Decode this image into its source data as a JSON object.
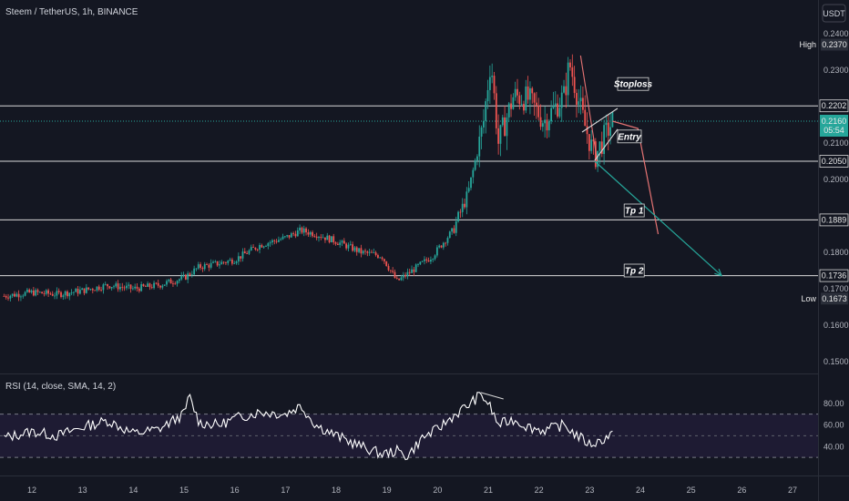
{
  "header": {
    "symbol_title": "Steem / TetherUS, 1h, BINANCE",
    "currency_button": "USDT"
  },
  "rsi_panel": {
    "title": "RSI (14, close, SMA, 14, 2)",
    "ticks": [
      "80.00",
      "60.00",
      "40.00"
    ]
  },
  "annotations": {
    "stoploss": "Stoploss",
    "entry": "Entry",
    "tp1": "Tp 1",
    "tp2": "Tp 2"
  },
  "price_axis": {
    "ticks": [
      "0.2400",
      "0.2300",
      "0.2100",
      "0.2000",
      "0.1800",
      "0.1700",
      "0.1600",
      "0.1500"
    ],
    "high_label": "High",
    "high_value": "0.2370",
    "low_label": "Low",
    "low_value": "0.1673",
    "current_price": "0.2160",
    "countdown": "05:54",
    "levels": [
      "0.2202",
      "0.2050",
      "0.1889",
      "0.1736"
    ]
  },
  "time_axis": {
    "ticks": [
      "12",
      "13",
      "14",
      "15",
      "16",
      "17",
      "18",
      "19",
      "20",
      "21",
      "22",
      "23",
      "24",
      "25",
      "26",
      "27"
    ]
  },
  "colors": {
    "background": "#141722",
    "up": "#26a69a",
    "down": "#ef5350",
    "level_line": "#d9d9d9",
    "current_price": "#26a69a",
    "rsi_line": "#ffffff",
    "rsi_band": "#1e1b33",
    "projection_down": "#e57373",
    "projection_target": "#26a69a"
  },
  "chart_data": {
    "type": "candlestick",
    "title": "Steem / TetherUS, 1h, BINANCE",
    "x_unit": "day",
    "x_ticks": [
      12,
      13,
      14,
      15,
      16,
      17,
      18,
      19,
      20,
      21,
      22,
      23,
      24,
      25,
      26,
      27
    ],
    "ylim": [
      0.145,
      0.245
    ],
    "horizontal_levels": [
      0.2202,
      0.205,
      0.1889,
      0.1736
    ],
    "current_price": 0.216,
    "high": 0.237,
    "low": 0.1673,
    "price_path": [
      [
        11.45,
        0.168
      ],
      [
        12.0,
        0.169
      ],
      [
        12.5,
        0.1685
      ],
      [
        13.0,
        0.1695
      ],
      [
        13.5,
        0.171
      ],
      [
        14.0,
        0.17
      ],
      [
        14.5,
        0.171
      ],
      [
        15.0,
        0.173
      ],
      [
        15.3,
        0.176
      ],
      [
        15.7,
        0.177
      ],
      [
        16.0,
        0.178
      ],
      [
        16.5,
        0.182
      ],
      [
        17.0,
        0.184
      ],
      [
        17.3,
        0.186
      ],
      [
        17.6,
        0.185
      ],
      [
        18.0,
        0.183
      ],
      [
        18.5,
        0.18
      ],
      [
        18.9,
        0.179
      ],
      [
        19.2,
        0.172
      ],
      [
        19.5,
        0.175
      ],
      [
        19.9,
        0.179
      ],
      [
        20.3,
        0.186
      ],
      [
        20.6,
        0.196
      ],
      [
        20.9,
        0.215
      ],
      [
        21.05,
        0.233
      ],
      [
        21.2,
        0.21
      ],
      [
        21.5,
        0.223
      ],
      [
        21.8,
        0.222
      ],
      [
        22.1,
        0.216
      ],
      [
        22.5,
        0.223
      ],
      [
        22.6,
        0.232
      ],
      [
        22.9,
        0.215
      ],
      [
        23.1,
        0.206
      ],
      [
        23.3,
        0.212
      ],
      [
        23.45,
        0.216
      ]
    ],
    "projection_short": [
      [
        23.45,
        0.216
      ],
      [
        23.95,
        0.214
      ],
      [
        24.35,
        0.185
      ]
    ],
    "projection_target": [
      [
        23.1,
        0.205
      ],
      [
        25.6,
        0.1736
      ]
    ],
    "rsi": {
      "ylim": [
        20,
        100
      ],
      "overbought": 70,
      "mid": 50,
      "oversold": 30,
      "path": [
        [
          11.45,
          48
        ],
        [
          12.0,
          54
        ],
        [
          12.5,
          50
        ],
        [
          13.0,
          58
        ],
        [
          13.5,
          64
        ],
        [
          14.0,
          52
        ],
        [
          14.5,
          56
        ],
        [
          15.0,
          70
        ],
        [
          15.1,
          87
        ],
        [
          15.3,
          62
        ],
        [
          15.7,
          60
        ],
        [
          16.0,
          66
        ],
        [
          16.5,
          72
        ],
        [
          17.0,
          70
        ],
        [
          17.3,
          78
        ],
        [
          17.6,
          60
        ],
        [
          18.0,
          50
        ],
        [
          18.5,
          40
        ],
        [
          18.9,
          33
        ],
        [
          19.2,
          36
        ],
        [
          19.4,
          31
        ],
        [
          19.7,
          48
        ],
        [
          20.0,
          56
        ],
        [
          20.3,
          68
        ],
        [
          20.6,
          78
        ],
        [
          20.85,
          88
        ],
        [
          21.0,
          80
        ],
        [
          21.2,
          60
        ],
        [
          21.5,
          65
        ],
        [
          21.8,
          58
        ],
        [
          22.1,
          55
        ],
        [
          22.5,
          60
        ],
        [
          22.7,
          52
        ],
        [
          23.0,
          42
        ],
        [
          23.2,
          45
        ],
        [
          23.45,
          52
        ]
      ]
    }
  }
}
